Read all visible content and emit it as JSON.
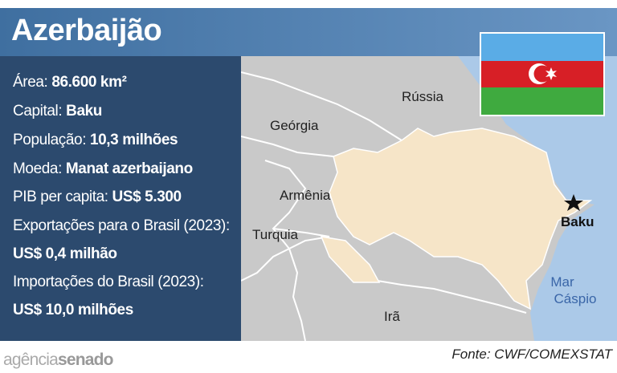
{
  "title": "Azerbaijão",
  "facts": [
    {
      "label": "Área:",
      "value": "86.600 km²"
    },
    {
      "label": "Capital:",
      "value": "Baku"
    },
    {
      "label": "População:",
      "value": "10,3 milhões"
    },
    {
      "label": "Moeda:",
      "value": "Manat azerbaijano"
    },
    {
      "label": "PIB per capita:",
      "value": "US$ 5.300"
    },
    {
      "label": "Exportações para o Brasil (2023):",
      "value": "US$ 0,4 milhão"
    },
    {
      "label": "Importações do Brasil (2023):",
      "value": "US$ 10,0 milhões"
    }
  ],
  "map_labels": {
    "russia": "Rússia",
    "georgia": "Geórgia",
    "armenia": "Armênia",
    "turquia": "Turquia",
    "ira": "Irã",
    "capital": "Baku",
    "sea": [
      "Mar",
      "Cáspio"
    ]
  },
  "source": "Fonte: CWF/COMEXSTAT",
  "logo": [
    "agência",
    "senado"
  ]
}
